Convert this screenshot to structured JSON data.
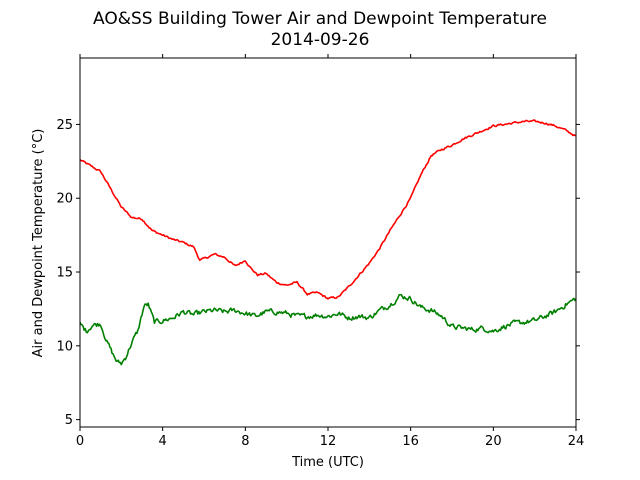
{
  "chart_data": {
    "type": "line",
    "title": "AO&SS Building Tower Air and Dewpoint Temperature",
    "subtitle": "2014-09-26",
    "xlabel": "Time (UTC)",
    "ylabel": "Air and Dewpoint Temperature (°C)",
    "xlim": [
      0,
      24
    ],
    "ylim": [
      4.5,
      29.5
    ],
    "x_ticks": [
      0,
      4,
      8,
      12,
      16,
      20,
      24
    ],
    "y_ticks": [
      5,
      10,
      15,
      20,
      25
    ],
    "grid": false,
    "legend": "none",
    "series": [
      {
        "color": "#ff0000",
        "x": [
          0,
          0.5,
          1,
          1.5,
          2,
          2.5,
          3,
          3.25,
          3.5,
          4,
          4.5,
          5,
          5.5,
          5.8,
          6,
          6.5,
          7,
          7.5,
          8,
          8.3,
          8.6,
          9,
          9.5,
          10,
          10.5,
          11,
          11.5,
          12,
          12.5,
          13,
          13.5,
          14,
          14.5,
          15,
          15.5,
          16,
          16.5,
          17,
          17.5,
          18,
          18.5,
          19,
          19.5,
          20,
          20.5,
          21,
          21.5,
          22,
          22.5,
          23,
          23.5,
          24
        ],
        "y": [
          22.6,
          22.2,
          21.8,
          20.6,
          19.4,
          18.7,
          18.6,
          18.2,
          17.8,
          17.5,
          17.2,
          17.0,
          16.7,
          15.8,
          15.9,
          16.2,
          16.0,
          15.4,
          15.8,
          15.2,
          14.8,
          14.9,
          14.3,
          14.1,
          14.3,
          13.5,
          13.6,
          13.2,
          13.3,
          14.0,
          14.8,
          15.6,
          16.6,
          17.8,
          18.9,
          20.0,
          21.6,
          22.9,
          23.3,
          23.6,
          24.0,
          24.3,
          24.6,
          24.9,
          25.0,
          25.1,
          25.2,
          25.2,
          25.1,
          24.9,
          24.6,
          24.2
        ],
        "noise": 0.12
      },
      {
        "color": "#008000",
        "x": [
          0,
          0.3,
          0.6,
          1,
          1.3,
          1.6,
          1.8,
          2,
          2.2,
          2.5,
          2.8,
          3.1,
          3.3,
          3.6,
          4,
          4.5,
          5,
          5.5,
          6,
          6.5,
          7,
          7.5,
          8,
          8.5,
          9,
          9.5,
          10,
          10.5,
          11,
          11.5,
          12,
          12.5,
          13,
          13.5,
          14,
          14.5,
          15,
          15.5,
          16,
          16.5,
          17,
          17.5,
          18,
          18.5,
          19,
          19.5,
          20,
          20.5,
          21,
          21.5,
          22,
          22.5,
          23,
          23.5,
          24
        ],
        "y": [
          11.5,
          11.0,
          11.4,
          11.5,
          10.3,
          9.4,
          8.9,
          8.8,
          9.2,
          10.2,
          11.0,
          12.7,
          12.8,
          11.6,
          11.7,
          11.9,
          12.3,
          12.1,
          12.3,
          12.4,
          12.3,
          12.4,
          12.2,
          12.0,
          12.3,
          12.3,
          12.2,
          12.0,
          12.0,
          12.1,
          12.0,
          12.2,
          11.9,
          12.0,
          11.9,
          12.4,
          12.8,
          13.4,
          13.2,
          12.6,
          12.4,
          12.0,
          11.3,
          11.2,
          11.1,
          11.2,
          11.0,
          11.3,
          11.5,
          11.6,
          11.7,
          12.0,
          12.3,
          12.8,
          13.2
        ],
        "noise": 0.3
      }
    ]
  }
}
